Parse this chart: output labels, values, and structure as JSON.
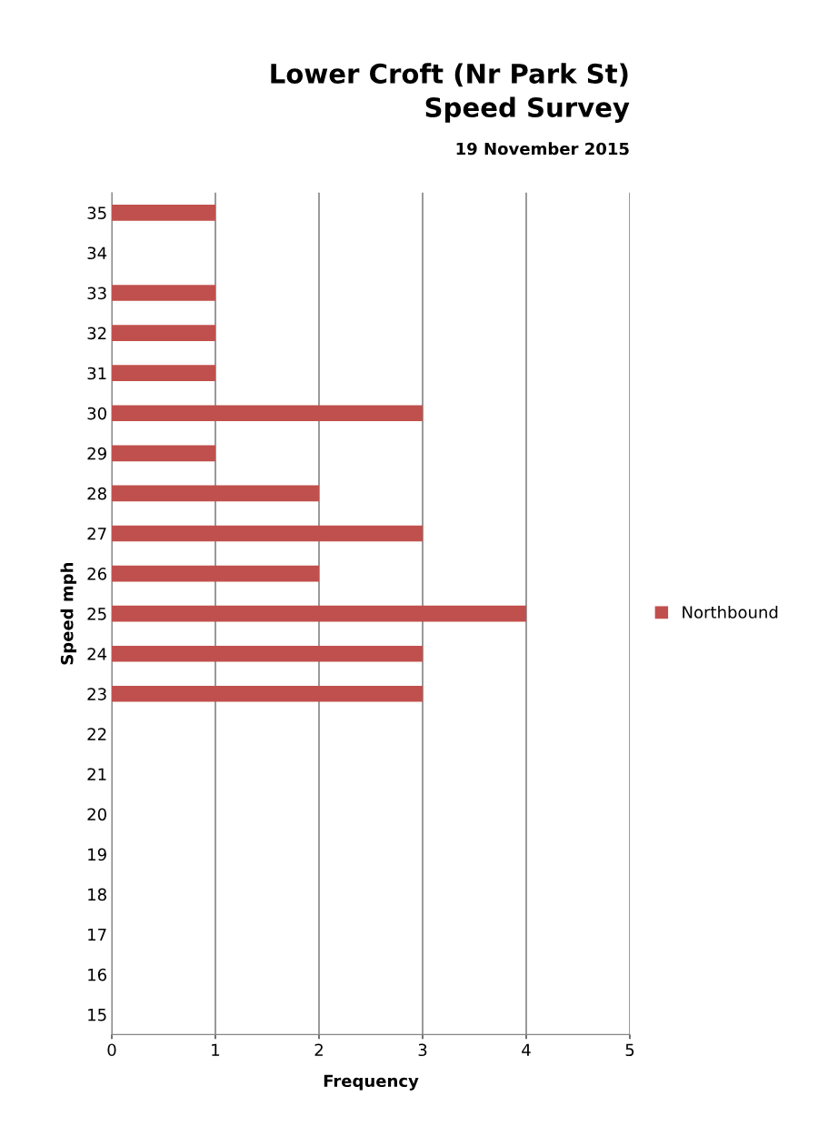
{
  "chart_data": {
    "type": "bar",
    "orientation": "horizontal",
    "title": "Lower Croft (Nr Park St)\nSpeed Survey",
    "subtitle": "19 November 2015",
    "xlabel": "Frequency",
    "ylabel": "Speed mph",
    "categories": [
      "35",
      "34",
      "33",
      "32",
      "31",
      "30",
      "29",
      "28",
      "27",
      "26",
      "25",
      "24",
      "23",
      "22",
      "21",
      "20",
      "19",
      "18",
      "17",
      "16",
      "15"
    ],
    "series": [
      {
        "name": "Northbound",
        "color": "#c0504d",
        "values": [
          1,
          0,
          1,
          1,
          1,
          3,
          1,
          2,
          3,
          2,
          4,
          3,
          3,
          0,
          0,
          0,
          0,
          0,
          0,
          0,
          0
        ]
      }
    ],
    "xlim": [
      0,
      5
    ],
    "xticks": [
      0,
      1,
      2,
      3,
      4,
      5
    ],
    "grid": "x",
    "legend": "right"
  }
}
